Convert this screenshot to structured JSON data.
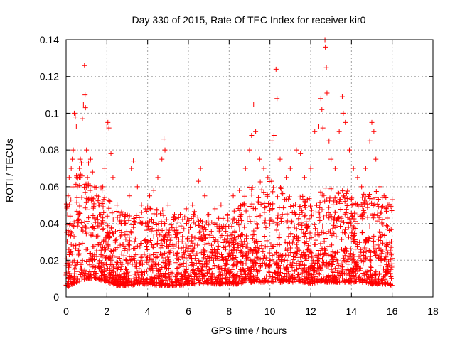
{
  "chart_data": {
    "type": "scatter",
    "title": "Day 330 of 2015, Rate Of TEC Index for receiver kir0",
    "xlabel": "GPS time / hours",
    "ylabel": "ROTI / TECUs",
    "xlim": [
      0,
      18
    ],
    "ylim": [
      0,
      0.14
    ],
    "xticks": [
      0,
      2,
      4,
      6,
      8,
      10,
      12,
      14,
      16,
      18
    ],
    "yticks": [
      0,
      0.02,
      0.04,
      0.06,
      0.08,
      0.1,
      0.12,
      0.14
    ],
    "xtick_labels": [
      "0",
      "2",
      "4",
      "6",
      "8",
      "10",
      "12",
      "14",
      "16",
      "18"
    ],
    "ytick_labels": [
      "0",
      "0.02",
      "0.04",
      "0.06",
      "0.08",
      "0.1",
      "0.12",
      "0.14"
    ],
    "grid": true,
    "legend": "none",
    "marker": "plus",
    "series_color": "#ff0000",
    "series": [
      {
        "name": "",
        "points": [
          [
            0.0,
            0.012
          ],
          [
            0.05,
            0.03
          ],
          [
            0.1,
            0.055
          ],
          [
            0.15,
            0.065
          ],
          [
            0.2,
            0.04
          ],
          [
            0.25,
            0.07
          ],
          [
            0.3,
            0.075
          ],
          [
            0.35,
            0.08
          ],
          [
            0.4,
            0.1
          ],
          [
            0.45,
            0.098
          ],
          [
            0.5,
            0.093
          ],
          [
            0.55,
            0.06
          ],
          [
            0.6,
            0.045
          ],
          [
            0.65,
            0.07
          ],
          [
            0.7,
            0.075
          ],
          [
            0.75,
            0.073
          ],
          [
            0.8,
            0.097
          ],
          [
            0.85,
            0.105
          ],
          [
            0.9,
            0.126
          ],
          [
            0.93,
            0.11
          ],
          [
            0.95,
            0.103
          ],
          [
            1.0,
            0.08
          ],
          [
            1.05,
            0.065
          ],
          [
            1.1,
            0.073
          ],
          [
            1.2,
            0.075
          ],
          [
            1.3,
            0.068
          ],
          [
            1.4,
            0.06
          ],
          [
            1.5,
            0.055
          ],
          [
            1.6,
            0.05
          ],
          [
            1.7,
            0.045
          ],
          [
            1.8,
            0.06
          ],
          [
            1.9,
            0.07
          ],
          [
            2.0,
            0.093
          ],
          [
            2.05,
            0.095
          ],
          [
            2.1,
            0.092
          ],
          [
            2.2,
            0.078
          ],
          [
            2.3,
            0.065
          ],
          [
            2.5,
            0.05
          ],
          [
            2.7,
            0.04
          ],
          [
            2.9,
            0.045
          ],
          [
            3.1,
            0.055
          ],
          [
            3.2,
            0.07
          ],
          [
            3.3,
            0.074
          ],
          [
            3.5,
            0.06
          ],
          [
            3.7,
            0.05
          ],
          [
            3.9,
            0.048
          ],
          [
            4.1,
            0.055
          ],
          [
            4.3,
            0.058
          ],
          [
            4.5,
            0.065
          ],
          [
            4.7,
            0.075
          ],
          [
            4.8,
            0.086
          ],
          [
            4.85,
            0.08
          ],
          [
            5.0,
            0.05
          ],
          [
            5.3,
            0.042
          ],
          [
            5.6,
            0.045
          ],
          [
            5.9,
            0.048
          ],
          [
            6.2,
            0.05
          ],
          [
            6.5,
            0.063
          ],
          [
            6.6,
            0.07
          ],
          [
            6.8,
            0.055
          ],
          [
            7.0,
            0.045
          ],
          [
            7.3,
            0.048
          ],
          [
            7.6,
            0.05
          ],
          [
            7.9,
            0.045
          ],
          [
            8.2,
            0.055
          ],
          [
            8.5,
            0.058
          ],
          [
            8.8,
            0.07
          ],
          [
            9.0,
            0.08
          ],
          [
            9.1,
            0.088
          ],
          [
            9.2,
            0.105
          ],
          [
            9.3,
            0.09
          ],
          [
            9.5,
            0.075
          ],
          [
            9.7,
            0.07
          ],
          [
            9.9,
            0.065
          ],
          [
            10.1,
            0.085
          ],
          [
            10.2,
            0.088
          ],
          [
            10.3,
            0.124
          ],
          [
            10.35,
            0.108
          ],
          [
            10.5,
            0.075
          ],
          [
            10.8,
            0.065
          ],
          [
            11.0,
            0.07
          ],
          [
            11.3,
            0.08
          ],
          [
            11.5,
            0.078
          ],
          [
            11.7,
            0.065
          ],
          [
            12.0,
            0.07
          ],
          [
            12.2,
            0.09
          ],
          [
            12.4,
            0.093
          ],
          [
            12.5,
            0.108
          ],
          [
            12.55,
            0.102
          ],
          [
            12.6,
            0.092
          ],
          [
            12.7,
            0.14
          ],
          [
            12.72,
            0.136
          ],
          [
            12.75,
            0.129
          ],
          [
            12.77,
            0.125
          ],
          [
            12.8,
            0.111
          ],
          [
            12.9,
            0.085
          ],
          [
            13.0,
            0.075
          ],
          [
            13.2,
            0.07
          ],
          [
            13.4,
            0.09
          ],
          [
            13.55,
            0.109
          ],
          [
            13.6,
            0.1
          ],
          [
            13.7,
            0.095
          ],
          [
            13.9,
            0.08
          ],
          [
            14.1,
            0.07
          ],
          [
            14.3,
            0.065
          ],
          [
            14.5,
            0.06
          ],
          [
            14.7,
            0.07
          ],
          [
            14.9,
            0.085
          ],
          [
            15.0,
            0.095
          ],
          [
            15.1,
            0.09
          ],
          [
            15.2,
            0.075
          ],
          [
            15.4,
            0.06
          ],
          [
            15.6,
            0.055
          ],
          [
            15.8,
            0.05
          ],
          [
            16.0,
            0.053
          ]
        ]
      }
    ],
    "envelope": {
      "description_x": [
        0,
        0.5,
        1,
        1.5,
        2,
        2.5,
        3,
        3.5,
        4,
        4.5,
        5,
        5.5,
        6,
        6.5,
        7,
        7.5,
        8,
        8.5,
        9,
        9.5,
        10,
        10.5,
        11,
        11.5,
        12,
        12.5,
        13,
        13.5,
        14,
        14.5,
        15,
        15.5,
        16
      ],
      "y_high": [
        0.055,
        0.07,
        0.065,
        0.06,
        0.06,
        0.05,
        0.045,
        0.045,
        0.05,
        0.05,
        0.045,
        0.045,
        0.045,
        0.05,
        0.045,
        0.045,
        0.045,
        0.05,
        0.06,
        0.065,
        0.065,
        0.06,
        0.055,
        0.055,
        0.055,
        0.06,
        0.06,
        0.06,
        0.06,
        0.055,
        0.06,
        0.055,
        0.053
      ],
      "y_low": [
        0.005,
        0.008,
        0.01,
        0.01,
        0.008,
        0.006,
        0.006,
        0.007,
        0.007,
        0.006,
        0.006,
        0.006,
        0.007,
        0.007,
        0.007,
        0.007,
        0.007,
        0.007,
        0.008,
        0.008,
        0.008,
        0.008,
        0.008,
        0.008,
        0.007,
        0.008,
        0.008,
        0.008,
        0.008,
        0.008,
        0.007,
        0.007,
        0.006
      ]
    }
  }
}
